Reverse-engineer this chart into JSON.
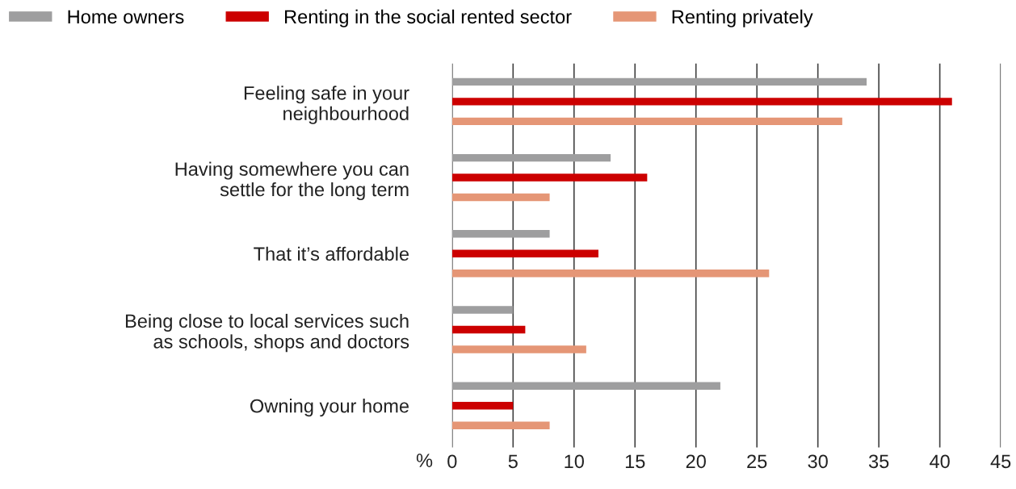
{
  "chart_data": {
    "type": "bar",
    "orientation": "horizontal",
    "xlabel": "%",
    "categories": [
      "Feeling safe in your\nneighbourhood",
      "Having somewhere you can\nsettle for the long term",
      "That it’s affordable",
      "Being close to local services such\nas schools, shops and doctors",
      "Owning your home"
    ],
    "series": [
      {
        "name": "Home owners",
        "color": "#9e9e9f",
        "values": [
          34,
          13,
          8,
          5,
          22
        ]
      },
      {
        "name": "Renting in the social rented sector",
        "color": "#cc0000",
        "values": [
          41,
          16,
          12,
          6,
          5
        ]
      },
      {
        "name": "Renting privately",
        "color": "#e59676",
        "values": [
          32,
          8,
          26,
          11,
          8
        ]
      }
    ],
    "xlim": [
      0,
      45
    ],
    "xticks": [
      0,
      5,
      10,
      15,
      20,
      25,
      30,
      35,
      40,
      45
    ],
    "grid": "x",
    "legend": "top"
  }
}
